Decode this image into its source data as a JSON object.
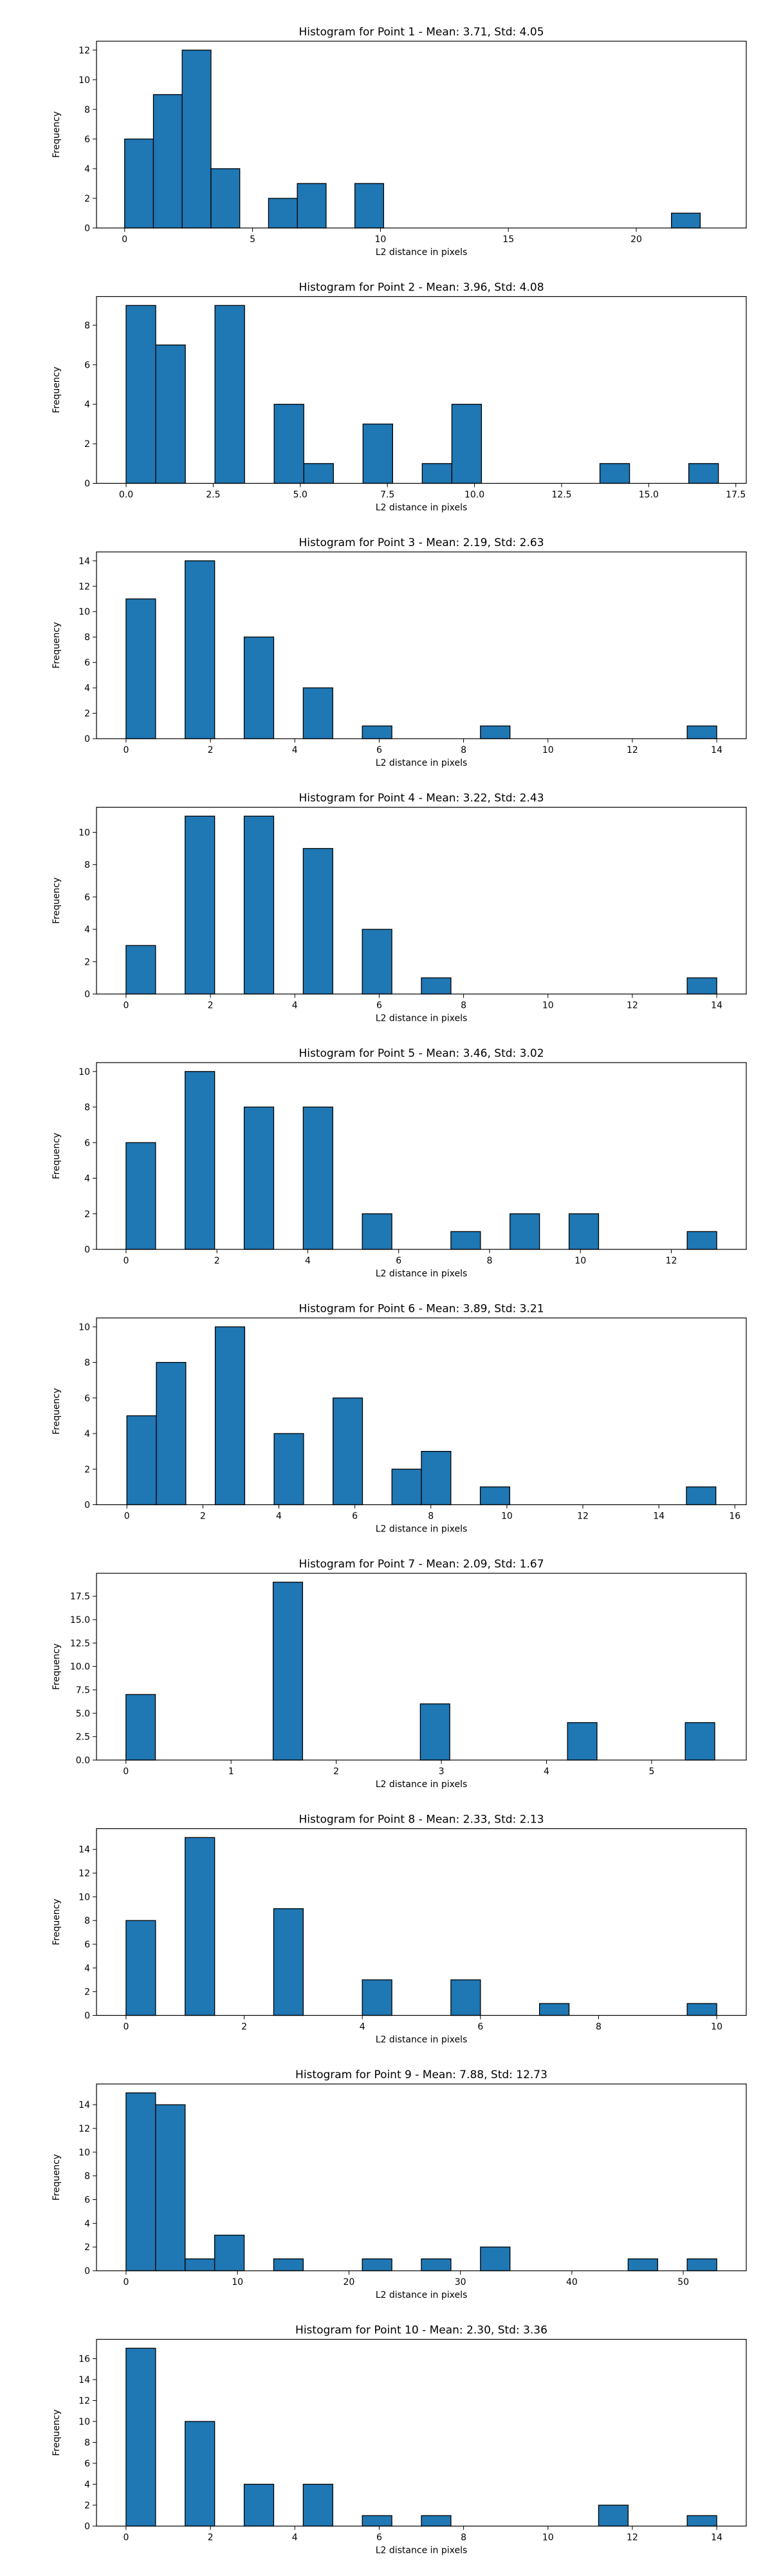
{
  "chart_data": [
    {
      "type": "bar",
      "title": "Histogram for Point 1 - Mean: 3.71, Std: 4.05",
      "xlabel": "L2 distance in pixels",
      "ylabel": "Frequency",
      "xlim": [
        -1.1,
        24.3
      ],
      "ylim": [
        0,
        12.6
      ],
      "xticks": [
        0,
        5,
        10,
        15,
        20
      ],
      "xtick_labels": [
        "0",
        "5",
        "10",
        "15",
        "20"
      ],
      "yticks": [
        0,
        2,
        4,
        6,
        8,
        10,
        12
      ],
      "ytick_labels": [
        "0",
        "2",
        "4",
        "6",
        "8",
        "10",
        "12"
      ],
      "bin_edges": [
        0,
        1.125,
        2.25,
        3.375,
        4.5,
        5.625,
        6.75,
        7.875,
        9.0,
        10.125,
        11.25,
        12.375,
        13.5,
        14.625,
        15.75,
        16.875,
        18.0,
        19.125,
        20.25,
        21.375,
        22.5
      ],
      "values": [
        6,
        9,
        12,
        4,
        0,
        2,
        3,
        0,
        3,
        0,
        0,
        0,
        0,
        0,
        0,
        0,
        0,
        0,
        0,
        1
      ]
    },
    {
      "type": "bar",
      "title": "Histogram for Point 2 - Mean: 3.96, Std: 4.08",
      "xlabel": "L2 distance in pixels",
      "ylabel": "Frequency",
      "xlim": [
        -0.85,
        17.8
      ],
      "ylim": [
        0,
        9.45
      ],
      "xticks": [
        0,
        2.5,
        5,
        7.5,
        10,
        12.5,
        15,
        17.5
      ],
      "xtick_labels": [
        "0.0",
        "2.5",
        "5.0",
        "7.5",
        "10.0",
        "12.5",
        "15.0",
        "17.5"
      ],
      "yticks": [
        0,
        2,
        4,
        6,
        8
      ],
      "ytick_labels": [
        "0",
        "2",
        "4",
        "6",
        "8"
      ],
      "bin_edges": [
        0,
        0.85,
        1.7,
        2.55,
        3.4,
        4.25,
        5.1,
        5.95,
        6.8,
        7.65,
        8.5,
        9.35,
        10.2,
        11.05,
        11.9,
        12.75,
        13.6,
        14.45,
        15.3,
        16.15,
        17.0
      ],
      "values": [
        9,
        7,
        0,
        9,
        0,
        4,
        1,
        0,
        3,
        0,
        1,
        4,
        0,
        0,
        0,
        0,
        1,
        0,
        0,
        1
      ]
    },
    {
      "type": "bar",
      "title": "Histogram for Point 3 - Mean: 2.19, Std: 2.63",
      "xlabel": "L2 distance in pixels",
      "ylabel": "Frequency",
      "xlim": [
        -0.7,
        14.7
      ],
      "ylim": [
        0,
        14.7
      ],
      "xticks": [
        0,
        2,
        4,
        6,
        8,
        10,
        12,
        14
      ],
      "xtick_labels": [
        "0",
        "2",
        "4",
        "6",
        "8",
        "10",
        "12",
        "14"
      ],
      "yticks": [
        0,
        2,
        4,
        6,
        8,
        10,
        12,
        14
      ],
      "ytick_labels": [
        "0",
        "2",
        "4",
        "6",
        "8",
        "10",
        "12",
        "14"
      ],
      "bin_edges": [
        0,
        0.7,
        1.4,
        2.1,
        2.8,
        3.5,
        4.2,
        4.9,
        5.6,
        6.3,
        7.0,
        7.7,
        8.4,
        9.1,
        9.8,
        10.5,
        11.2,
        11.9,
        12.6,
        13.3,
        14.0
      ],
      "values": [
        11,
        0,
        14,
        0,
        8,
        0,
        4,
        0,
        1,
        0,
        0,
        0,
        1,
        0,
        0,
        0,
        0,
        0,
        0,
        1
      ]
    },
    {
      "type": "bar",
      "title": "Histogram for Point 4 - Mean: 3.22, Std: 2.43",
      "xlabel": "L2 distance in pixels",
      "ylabel": "Frequency",
      "xlim": [
        -0.7,
        14.7
      ],
      "ylim": [
        0,
        11.55
      ],
      "xticks": [
        0,
        2,
        4,
        6,
        8,
        10,
        12,
        14
      ],
      "xtick_labels": [
        "0",
        "2",
        "4",
        "6",
        "8",
        "10",
        "12",
        "14"
      ],
      "yticks": [
        0,
        2,
        4,
        6,
        8,
        10
      ],
      "ytick_labels": [
        "0",
        "2",
        "4",
        "6",
        "8",
        "10"
      ],
      "bin_edges": [
        0,
        0.7,
        1.4,
        2.1,
        2.8,
        3.5,
        4.2,
        4.9,
        5.6,
        6.3,
        7.0,
        7.7,
        8.4,
        9.1,
        9.8,
        10.5,
        11.2,
        11.9,
        12.6,
        13.3,
        14.0
      ],
      "values": [
        3,
        0,
        11,
        0,
        11,
        0,
        9,
        0,
        4,
        0,
        1,
        0,
        0,
        0,
        0,
        0,
        0,
        0,
        0,
        1
      ]
    },
    {
      "type": "bar",
      "title": "Histogram for Point 5 - Mean: 3.46, Std: 3.02",
      "xlabel": "L2 distance in pixels",
      "ylabel": "Frequency",
      "xlim": [
        -0.65,
        13.65
      ],
      "ylim": [
        0,
        10.5
      ],
      "xticks": [
        0,
        2,
        4,
        6,
        8,
        10,
        12
      ],
      "xtick_labels": [
        "0",
        "2",
        "4",
        "6",
        "8",
        "10",
        "12"
      ],
      "yticks": [
        0,
        2,
        4,
        6,
        8,
        10
      ],
      "ytick_labels": [
        "0",
        "2",
        "4",
        "6",
        "8",
        "10"
      ],
      "bin_edges": [
        0,
        0.65,
        1.3,
        1.95,
        2.6,
        3.25,
        3.9,
        4.55,
        5.2,
        5.85,
        6.5,
        7.15,
        7.8,
        8.45,
        9.1,
        9.75,
        10.4,
        11.05,
        11.7,
        12.35,
        13.0
      ],
      "values": [
        6,
        0,
        10,
        0,
        8,
        0,
        8,
        0,
        2,
        0,
        0,
        1,
        0,
        2,
        0,
        2,
        0,
        0,
        0,
        1
      ]
    },
    {
      "type": "bar",
      "title": "Histogram for Point 6 - Mean: 3.89, Std: 3.21",
      "xlabel": "L2 distance in pixels",
      "ylabel": "Frequency",
      "xlim": [
        -0.8,
        16.3
      ],
      "ylim": [
        0,
        10.5
      ],
      "xticks": [
        0,
        2,
        4,
        6,
        8,
        10,
        12,
        14,
        16
      ],
      "xtick_labels": [
        "0",
        "2",
        "4",
        "6",
        "8",
        "10",
        "12",
        "14",
        "16"
      ],
      "yticks": [
        0,
        2,
        4,
        6,
        8,
        10
      ],
      "ytick_labels": [
        "0",
        "2",
        "4",
        "6",
        "8",
        "10"
      ],
      "bin_edges": [
        0,
        0.775,
        1.55,
        2.325,
        3.1,
        3.875,
        4.65,
        5.425,
        6.2,
        6.975,
        7.75,
        8.525,
        9.3,
        10.075,
        10.85,
        11.625,
        12.4,
        13.175,
        13.95,
        14.725,
        15.5
      ],
      "values": [
        5,
        8,
        0,
        10,
        0,
        4,
        0,
        6,
        0,
        2,
        3,
        0,
        1,
        0,
        0,
        0,
        0,
        0,
        0,
        1
      ]
    },
    {
      "type": "bar",
      "title": "Histogram for Point 7 - Mean: 2.09, Std: 1.67",
      "xlabel": "L2 distance in pixels",
      "ylabel": "Frequency",
      "xlim": [
        -0.28,
        5.9
      ],
      "ylim": [
        0,
        19.95
      ],
      "xticks": [
        0,
        1,
        2,
        3,
        4,
        5
      ],
      "xtick_labels": [
        "0",
        "1",
        "2",
        "3",
        "4",
        "5"
      ],
      "yticks": [
        0,
        2.5,
        5,
        7.5,
        10,
        12.5,
        15,
        17.5
      ],
      "ytick_labels": [
        "0.0",
        "2.5",
        "5.0",
        "7.5",
        "10.0",
        "12.5",
        "15.0",
        "17.5"
      ],
      "bin_edges": [
        0,
        0.28,
        0.56,
        0.84,
        1.12,
        1.4,
        1.68,
        1.96,
        2.24,
        2.52,
        2.8,
        3.08,
        3.36,
        3.64,
        3.92,
        4.2,
        4.48,
        4.76,
        5.04,
        5.32,
        5.6
      ],
      "values": [
        7,
        0,
        0,
        0,
        0,
        19,
        0,
        0,
        0,
        0,
        6,
        0,
        0,
        0,
        0,
        4,
        0,
        0,
        0,
        4
      ]
    },
    {
      "type": "bar",
      "title": "Histogram for Point 8 - Mean: 2.33, Std: 2.13",
      "xlabel": "L2 distance in pixels",
      "ylabel": "Frequency",
      "xlim": [
        -0.5,
        10.5
      ],
      "ylim": [
        0,
        15.75
      ],
      "xticks": [
        0,
        2,
        4,
        6,
        8,
        10
      ],
      "xtick_labels": [
        "0",
        "2",
        "4",
        "6",
        "8",
        "10"
      ],
      "yticks": [
        0,
        2,
        4,
        6,
        8,
        10,
        12,
        14
      ],
      "ytick_labels": [
        "0",
        "2",
        "4",
        "6",
        "8",
        "10",
        "12",
        "14"
      ],
      "bin_edges": [
        0,
        0.5,
        1.0,
        1.5,
        2.0,
        2.5,
        3.0,
        3.5,
        4.0,
        4.5,
        5.0,
        5.5,
        6.0,
        6.5,
        7.0,
        7.5,
        8.0,
        8.5,
        9.0,
        9.5,
        10.0
      ],
      "values": [
        8,
        0,
        15,
        0,
        0,
        9,
        0,
        0,
        3,
        0,
        0,
        3,
        0,
        0,
        1,
        0,
        0,
        0,
        0,
        1
      ]
    },
    {
      "type": "bar",
      "title": "Histogram for Point 9 - Mean: 7.88, Std: 12.73",
      "xlabel": "L2 distance in pixels",
      "ylabel": "Frequency",
      "xlim": [
        -2.65,
        55.65
      ],
      "ylim": [
        0,
        15.75
      ],
      "xticks": [
        0,
        10,
        20,
        30,
        40,
        50
      ],
      "xtick_labels": [
        "0",
        "10",
        "20",
        "30",
        "40",
        "50"
      ],
      "yticks": [
        0,
        2,
        4,
        6,
        8,
        10,
        12,
        14
      ],
      "ytick_labels": [
        "0",
        "2",
        "4",
        "6",
        "8",
        "10",
        "12",
        "14"
      ],
      "bin_edges": [
        0,
        2.65,
        5.3,
        7.95,
        10.6,
        13.25,
        15.9,
        18.55,
        21.2,
        23.85,
        26.5,
        29.15,
        31.8,
        34.45,
        37.1,
        39.75,
        42.4,
        45.05,
        47.7,
        50.35,
        53.0
      ],
      "values": [
        15,
        14,
        1,
        3,
        0,
        1,
        0,
        0,
        1,
        0,
        1,
        0,
        2,
        0,
        0,
        0,
        0,
        1,
        0,
        1
      ]
    },
    {
      "type": "bar",
      "title": "Histogram for Point 10 - Mean: 2.30, Std: 3.36",
      "xlabel": "L2 distance in pixels",
      "ylabel": "Frequency",
      "xlim": [
        -0.7,
        14.7
      ],
      "ylim": [
        0,
        17.85
      ],
      "xticks": [
        0,
        2,
        4,
        6,
        8,
        10,
        12,
        14
      ],
      "xtick_labels": [
        "0",
        "2",
        "4",
        "6",
        "8",
        "10",
        "12",
        "14"
      ],
      "yticks": [
        0,
        2,
        4,
        6,
        8,
        10,
        12,
        14,
        16
      ],
      "ytick_labels": [
        "0",
        "2",
        "4",
        "6",
        "8",
        "10",
        "12",
        "14",
        "16"
      ],
      "bin_edges": [
        0,
        0.7,
        1.4,
        2.1,
        2.8,
        3.5,
        4.2,
        4.9,
        5.6,
        6.3,
        7.0,
        7.7,
        8.4,
        9.1,
        9.8,
        10.5,
        11.2,
        11.9,
        12.6,
        13.3,
        14.0
      ],
      "values": [
        17,
        0,
        10,
        0,
        4,
        0,
        4,
        0,
        1,
        0,
        1,
        0,
        0,
        0,
        0,
        0,
        2,
        0,
        0,
        1
      ]
    }
  ],
  "style": {
    "bar_color": "#1f77b4",
    "bar_edge_color": "#000000",
    "grid": false,
    "legend": "none"
  }
}
